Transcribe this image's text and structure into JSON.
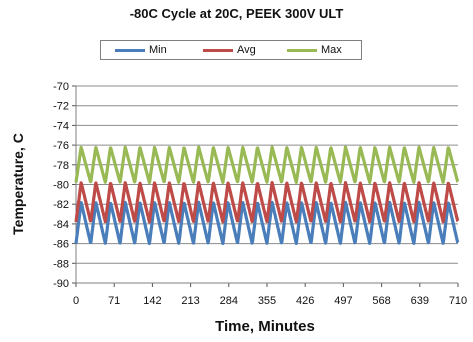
{
  "chart_data": {
    "type": "line",
    "title": "-80C Cycle at 20C, PEEK 300V ULT",
    "xlabel": "Time, Minutes",
    "ylabel": "Temperature, C",
    "xlim": [
      0,
      710
    ],
    "ylim": [
      -90,
      -70
    ],
    "x_ticks": [
      "0",
      "71",
      "142",
      "213",
      "284",
      "355",
      "426",
      "497",
      "568",
      "639",
      "710"
    ],
    "y_ticks": [
      "-70",
      "-72",
      "-74",
      "-76",
      "-78",
      "-80",
      "-82",
      "-84",
      "-86",
      "-88",
      "-90"
    ],
    "grid": "horizontal",
    "legend_position": "top",
    "cycle_period_minutes": 27.3,
    "series": [
      {
        "name": "Min",
        "color": "#4a7ebb",
        "low": -86.0,
        "high": -81.8
      },
      {
        "name": "Avg",
        "color": "#be4b48",
        "low": -83.8,
        "high": -79.8
      },
      {
        "name": "Max",
        "color": "#98b954",
        "low": -79.8,
        "high": -76.2
      }
    ]
  }
}
